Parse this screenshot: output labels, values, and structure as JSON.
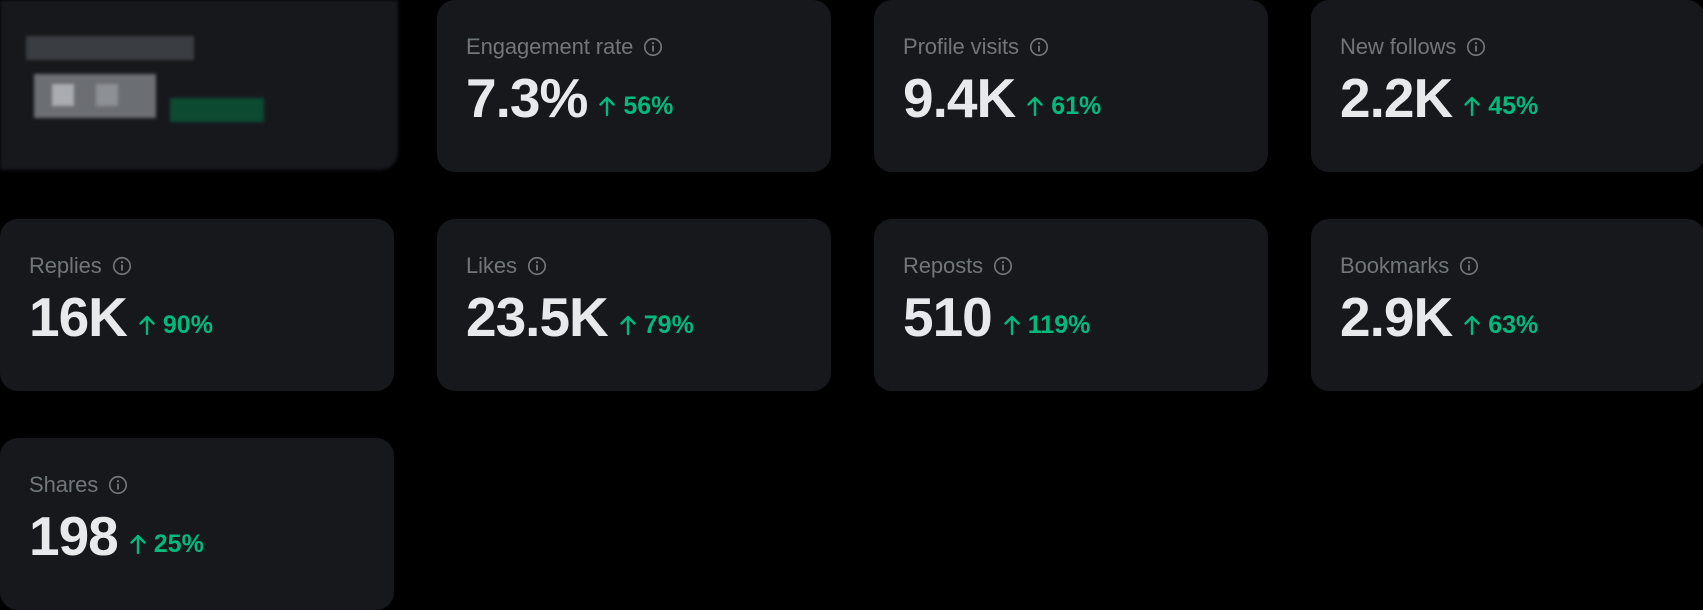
{
  "colors": {
    "page_background": "#000000",
    "card_background": "#16181c",
    "label": "#71767b",
    "value": "#e7e9ea",
    "positive_change": "#00ba7c"
  },
  "redacted_card": {
    "obscured": true
  },
  "metrics": [
    {
      "label": "Engagement rate",
      "value": "7.3%",
      "change": "56%",
      "icon": "info-icon",
      "trend_icon": "arrow-up-icon"
    },
    {
      "label": "Profile visits",
      "value": "9.4K",
      "change": "61%",
      "icon": "info-icon",
      "trend_icon": "arrow-up-icon"
    },
    {
      "label": "New follows",
      "value": "2.2K",
      "change": "45%",
      "icon": "info-icon",
      "trend_icon": "arrow-up-icon"
    },
    {
      "label": "Replies",
      "value": "16K",
      "change": "90%",
      "icon": "info-icon",
      "trend_icon": "arrow-up-icon"
    },
    {
      "label": "Likes",
      "value": "23.5K",
      "change": "79%",
      "icon": "info-icon",
      "trend_icon": "arrow-up-icon"
    },
    {
      "label": "Reposts",
      "value": "510",
      "change": "119%",
      "icon": "info-icon",
      "trend_icon": "arrow-up-icon"
    },
    {
      "label": "Bookmarks",
      "value": "2.9K",
      "change": "63%",
      "icon": "info-icon",
      "trend_icon": "arrow-up-icon"
    },
    {
      "label": "Shares",
      "value": "198",
      "change": "25%",
      "icon": "info-icon",
      "trend_icon": "arrow-up-icon"
    }
  ]
}
